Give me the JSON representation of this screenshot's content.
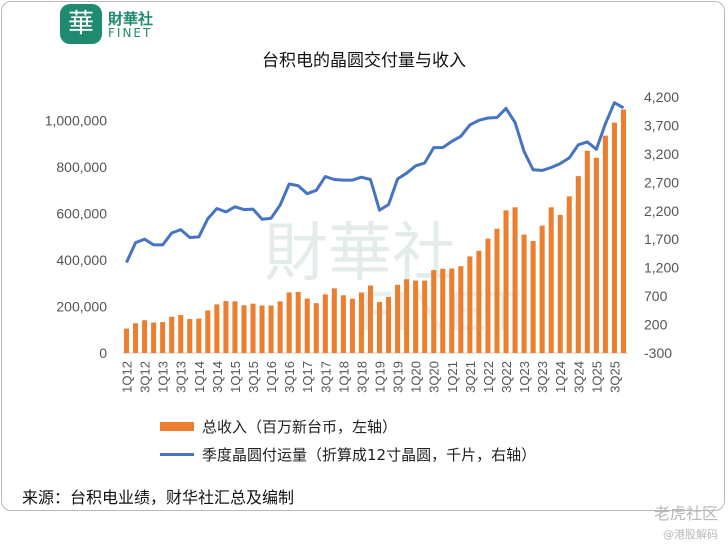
{
  "branding": {
    "logo_glyph": "華",
    "logo_cn": "財華社",
    "logo_en": "FINET",
    "watermark_cn": "財華社",
    "watermark_en": "FINET"
  },
  "chart_data": {
    "type": "bar+line",
    "title": "台积电的晶圆交付量与收入",
    "categories": [
      "1Q12",
      "2Q12",
      "3Q12",
      "4Q12",
      "1Q13",
      "2Q13",
      "3Q13",
      "4Q13",
      "1Q14",
      "2Q14",
      "3Q14",
      "4Q14",
      "1Q15",
      "2Q15",
      "3Q15",
      "4Q15",
      "1Q16",
      "2Q16",
      "3Q16",
      "4Q16",
      "1Q17",
      "2Q17",
      "3Q17",
      "4Q17",
      "1Q18",
      "2Q18",
      "3Q18",
      "4Q18",
      "1Q19",
      "2Q19",
      "3Q19",
      "4Q19",
      "1Q20",
      "2Q20",
      "3Q20",
      "4Q20",
      "1Q21",
      "2Q21",
      "3Q21",
      "4Q21",
      "1Q22",
      "2Q22",
      "3Q22",
      "4Q22",
      "1Q23",
      "2Q23",
      "3Q23",
      "4Q23",
      "1Q24",
      "2Q24",
      "3Q24",
      "4Q24",
      "1Q25",
      "2Q25",
      "3Q25",
      "4Q25"
    ],
    "tick_labels": [
      "1Q12",
      "3Q12",
      "1Q13",
      "3Q13",
      "1Q14",
      "3Q14",
      "1Q15",
      "3Q15",
      "1Q16",
      "3Q16",
      "1Q17",
      "3Q17",
      "1Q18",
      "3Q18",
      "1Q19",
      "3Q19",
      "1Q20",
      "3Q20",
      "1Q21",
      "3Q21",
      "1Q22",
      "3Q22",
      "1Q23",
      "3Q23",
      "1Q24",
      "3Q24",
      "1Q25",
      "3Q25"
    ],
    "series": [
      {
        "name": "总收入（百万新台币，左轴）",
        "type": "bar",
        "axis": "left",
        "color": "#ec7f2f",
        "values": [
          105000,
          128000,
          141000,
          131000,
          133000,
          156000,
          163000,
          146000,
          148000,
          183000,
          209000,
          223000,
          222000,
          205000,
          212000,
          204000,
          204000,
          222000,
          260000,
          262000,
          234000,
          214000,
          252000,
          278000,
          248000,
          233000,
          260000,
          290000,
          219000,
          241000,
          293000,
          317000,
          311000,
          311000,
          356000,
          362000,
          363000,
          373000,
          415000,
          439000,
          491000,
          534000,
          613000,
          626000,
          509000,
          481000,
          547000,
          626000,
          593000,
          673000,
          760000,
          869000,
          839000,
          934000,
          990000,
          1046000
        ]
      },
      {
        "name": "季度晶圆付运量（折算成12寸晶圆，千片，右轴）",
        "type": "line",
        "axis": "right",
        "color": "#4674c1",
        "values": [
          1290,
          1640,
          1700,
          1600,
          1600,
          1810,
          1870,
          1730,
          1740,
          2060,
          2240,
          2180,
          2270,
          2220,
          2230,
          2050,
          2070,
          2300,
          2670,
          2640,
          2500,
          2560,
          2800,
          2750,
          2740,
          2740,
          2790,
          2750,
          2210,
          2310,
          2760,
          2860,
          2990,
          3040,
          3310,
          3310,
          3420,
          3510,
          3710,
          3790,
          3830,
          3840,
          4000,
          3750,
          3240,
          2920,
          2910,
          2960,
          3030,
          3130,
          3360,
          3410,
          3280,
          3730,
          4100,
          4010
        ]
      }
    ],
    "y_left": {
      "min": 0,
      "max": 1100000,
      "ticks": [
        0,
        200000,
        400000,
        600000,
        800000,
        1000000
      ],
      "tick_labels": [
        "0",
        "200,000",
        "400,000",
        "600,000",
        "800,000",
        "1,000,000"
      ]
    },
    "y_right": {
      "min": -300,
      "max": 4200,
      "ticks": [
        -300,
        200,
        700,
        1200,
        1700,
        2200,
        2700,
        3200,
        3700,
        4200
      ],
      "tick_labels": [
        "-300",
        "200",
        "700",
        "1,200",
        "1,700",
        "2,200",
        "2,700",
        "3,200",
        "3,700",
        "4,200"
      ]
    },
    "legend": {
      "position": "bottom",
      "items": [
        "总收入（百万新台币，左轴）",
        "季度晶圆付运量（折算成12寸晶圆，千片，右轴）"
      ]
    },
    "grid": false
  },
  "source": "来源：台积电业绩，财华社汇总及编制",
  "footer": {
    "watermark": "老虎社区",
    "handle": "@港股解码"
  }
}
